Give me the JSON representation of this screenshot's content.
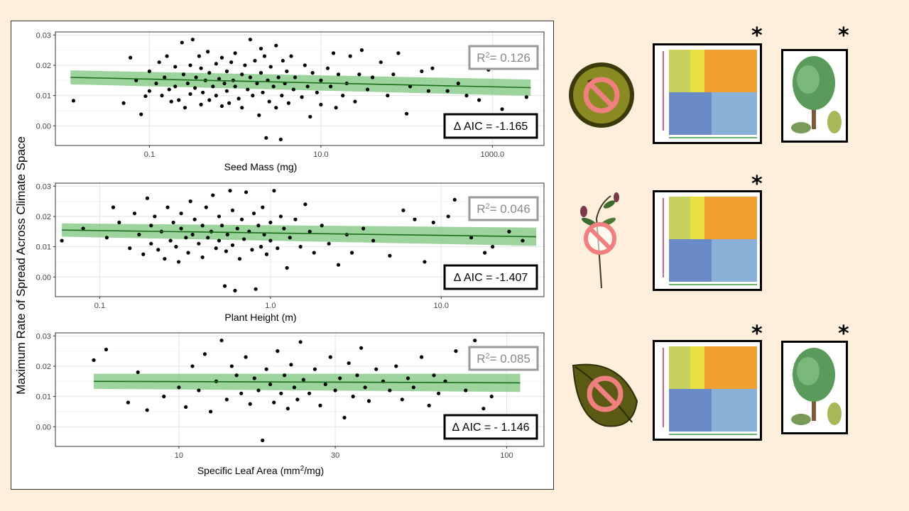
{
  "y_axis_label": "Maximum Rate of Spread Across Climate Space",
  "stat_boxes": [
    {
      "r2_prefix": "R",
      "r2_sup": "2",
      "r2_value": "= 0.126",
      "aic": "Δ AIC = -1.165"
    },
    {
      "r2_prefix": "R",
      "r2_sup": "2",
      "r2_value": "= 0.046",
      "aic": "Δ AIC = -1.407"
    },
    {
      "r2_prefix": "R",
      "r2_sup": "2",
      "r2_value": "= 0.085",
      "aic": "Δ AIC = - 1.146"
    }
  ],
  "asterisk": "*",
  "icons": {
    "row1": [
      "seed-no-icon",
      "climate-map-icon",
      "tree-icon"
    ],
    "row2": [
      "plant-height-no-icon",
      "climate-map-icon"
    ],
    "row3": [
      "leaf-no-icon",
      "climate-map-icon",
      "tree-icon"
    ]
  },
  "colors": {
    "background": "#fdefdc",
    "fit_line": "#1a6e1a",
    "ci_band": "#7cc47c",
    "points": "#000000",
    "no_symbol": "#f08080"
  },
  "chart_data": [
    {
      "type": "scatter",
      "xlabel": "Seed Mass (mg)",
      "xlabel_sup": "",
      "x_scale": "log10",
      "xlim": [
        0.008,
        4000
      ],
      "ylim": [
        -0.0065,
        0.031
      ],
      "x_ticks": [
        0.1,
        10,
        1000
      ],
      "x_tick_labels": [
        "0.1",
        "10.0",
        "1000.0"
      ],
      "y_ticks": [
        0,
        0.01,
        0.02,
        0.03
      ],
      "y_tick_labels": [
        "0.00",
        "0.01",
        "0.02",
        "0.03"
      ],
      "grid": true,
      "fit": {
        "x": [
          0.012,
          2800
        ],
        "y": [
          0.016,
          0.0126
        ],
        "ci_halfwidth": [
          0.0023,
          0.0027
        ]
      },
      "points": [
        [
          0.013,
          0.0083
        ],
        [
          0.05,
          0.0075
        ],
        [
          0.06,
          0.0225
        ],
        [
          0.07,
          0.015
        ],
        [
          0.08,
          0.0038
        ],
        [
          0.09,
          0.0098
        ],
        [
          0.1,
          0.0115
        ],
        [
          0.1,
          0.018
        ],
        [
          0.12,
          0.014
        ],
        [
          0.13,
          0.021
        ],
        [
          0.14,
          0.01
        ],
        [
          0.15,
          0.016
        ],
        [
          0.16,
          0.023
        ],
        [
          0.17,
          0.012
        ],
        [
          0.18,
          0.008
        ],
        [
          0.2,
          0.0195
        ],
        [
          0.2,
          0.013
        ],
        [
          0.22,
          0.0085
        ],
        [
          0.24,
          0.0275
        ],
        [
          0.25,
          0.017
        ],
        [
          0.26,
          0.006
        ],
        [
          0.28,
          0.014
        ],
        [
          0.3,
          0.02
        ],
        [
          0.3,
          0.0105
        ],
        [
          0.32,
          0.0285
        ],
        [
          0.34,
          0.0125
        ],
        [
          0.35,
          0.016
        ],
        [
          0.38,
          0.023
        ],
        [
          0.4,
          0.007
        ],
        [
          0.4,
          0.019
        ],
        [
          0.42,
          0.011
        ],
        [
          0.45,
          0.015
        ],
        [
          0.48,
          0.0245
        ],
        [
          0.5,
          0.0085
        ],
        [
          0.5,
          0.0175
        ],
        [
          0.55,
          0.013
        ],
        [
          0.6,
          0.0205
        ],
        [
          0.6,
          0.01
        ],
        [
          0.65,
          0.0155
        ],
        [
          0.7,
          0.0065
        ],
        [
          0.7,
          0.0225
        ],
        [
          0.75,
          0.014
        ],
        [
          0.8,
          0.018
        ],
        [
          0.8,
          0.0115
        ],
        [
          0.85,
          0.0075
        ],
        [
          0.9,
          0.021
        ],
        [
          0.95,
          0.015
        ],
        [
          1.0,
          0.013
        ],
        [
          1.0,
          0.024
        ],
        [
          1.1,
          0.009
        ],
        [
          1.2,
          0.017
        ],
        [
          1.2,
          0.006
        ],
        [
          1.3,
          0.02
        ],
        [
          1.4,
          0.012
        ],
        [
          1.5,
          0.016
        ],
        [
          1.5,
          0.0285
        ],
        [
          1.6,
          0.01
        ],
        [
          1.7,
          0.0215
        ],
        [
          1.8,
          0.014
        ],
        [
          1.9,
          0.0035
        ],
        [
          2.0,
          0.0175
        ],
        [
          2.0,
          0.0255
        ],
        [
          2.1,
          0.011
        ],
        [
          2.2,
          0.023
        ],
        [
          2.3,
          -0.004
        ],
        [
          2.4,
          0.015
        ],
        [
          2.5,
          0.008
        ],
        [
          2.6,
          0.0195
        ],
        [
          2.8,
          0.013
        ],
        [
          3.0,
          0.0265
        ],
        [
          3.0,
          0.006
        ],
        [
          3.2,
          0.016
        ],
        [
          3.4,
          -0.0045
        ],
        [
          3.5,
          0.01
        ],
        [
          3.6,
          0.0215
        ],
        [
          3.8,
          0.014
        ],
        [
          4.0,
          0.018
        ],
        [
          4.2,
          0.0075
        ],
        [
          4.5,
          0.023
        ],
        [
          4.8,
          0.012
        ],
        [
          5.0,
          0.016
        ],
        [
          6.0,
          0.0095
        ],
        [
          6.5,
          0.02
        ],
        [
          7.0,
          0.013
        ],
        [
          7.5,
          0.003
        ],
        [
          8.0,
          0.0175
        ],
        [
          9.0,
          0.011
        ],
        [
          10,
          0.015
        ],
        [
          10,
          0.007
        ],
        [
          12,
          0.019
        ],
        [
          13,
          0.013
        ],
        [
          14,
          0.024
        ],
        [
          15,
          0.006
        ],
        [
          16,
          0.017
        ],
        [
          18,
          0.01
        ],
        [
          20,
          0.014
        ],
        [
          22,
          0.023
        ],
        [
          25,
          0.008
        ],
        [
          28,
          0.017
        ],
        [
          30,
          0.025
        ],
        [
          35,
          0.012
        ],
        [
          40,
          0.016
        ],
        [
          50,
          0.021
        ],
        [
          60,
          0.01
        ],
        [
          70,
          0.017
        ],
        [
          80,
          0.024
        ],
        [
          100,
          0.004
        ],
        [
          110,
          0.013
        ],
        [
          150,
          0.018
        ],
        [
          180,
          0.0115
        ],
        [
          200,
          0.019
        ],
        [
          300,
          0.0115
        ],
        [
          400,
          0.014
        ],
        [
          500,
          0.01
        ],
        [
          700,
          0.0085
        ],
        [
          900,
          0.0185
        ],
        [
          1300,
          0.0055
        ],
        [
          2500,
          0.0095
        ]
      ]
    },
    {
      "type": "scatter",
      "xlabel": "Plant Height (m)",
      "xlabel_sup": "",
      "x_scale": "log10",
      "xlim": [
        0.055,
        40
      ],
      "ylim": [
        -0.0065,
        0.031
      ],
      "x_ticks": [
        0.1,
        1,
        10
      ],
      "x_tick_labels": [
        "0.1",
        "1.0",
        "10.0"
      ],
      "y_ticks": [
        0,
        0.01,
        0.02,
        0.03
      ],
      "y_tick_labels": [
        "0.00",
        "0.01",
        "0.02",
        "0.03"
      ],
      "grid": true,
      "fit": {
        "x": [
          0.06,
          36
        ],
        "y": [
          0.0155,
          0.0133
        ],
        "ci_halfwidth": [
          0.0022,
          0.003
        ]
      },
      "points": [
        [
          0.06,
          0.012
        ],
        [
          0.08,
          0.016
        ],
        [
          0.11,
          0.013
        ],
        [
          0.12,
          0.023
        ],
        [
          0.13,
          0.018
        ],
        [
          0.15,
          0.0095
        ],
        [
          0.16,
          0.021
        ],
        [
          0.17,
          0.014
        ],
        [
          0.18,
          0.0075
        ],
        [
          0.19,
          0.026
        ],
        [
          0.2,
          0.017
        ],
        [
          0.2,
          0.011
        ],
        [
          0.21,
          0.02
        ],
        [
          0.22,
          0.009
        ],
        [
          0.23,
          0.015
        ],
        [
          0.24,
          0.006
        ],
        [
          0.25,
          0.023
        ],
        [
          0.26,
          0.012
        ],
        [
          0.27,
          0.018
        ],
        [
          0.28,
          0.01
        ],
        [
          0.29,
          0.005
        ],
        [
          0.3,
          0.016
        ],
        [
          0.3,
          0.021
        ],
        [
          0.32,
          0.013
        ],
        [
          0.33,
          0.008
        ],
        [
          0.34,
          0.025
        ],
        [
          0.35,
          0.014
        ],
        [
          0.36,
          0.019
        ],
        [
          0.38,
          0.011
        ],
        [
          0.4,
          0.017
        ],
        [
          0.4,
          0.0065
        ],
        [
          0.42,
          0.023
        ],
        [
          0.43,
          0.013
        ],
        [
          0.45,
          0.015
        ],
        [
          0.46,
          0.027
        ],
        [
          0.48,
          0.0095
        ],
        [
          0.5,
          0.02
        ],
        [
          0.5,
          0.012
        ],
        [
          0.52,
          0.017
        ],
        [
          0.54,
          -0.003
        ],
        [
          0.55,
          0.0085
        ],
        [
          0.56,
          0.014
        ],
        [
          0.58,
          0.0285
        ],
        [
          0.6,
          0.022
        ],
        [
          0.6,
          0.0105
        ],
        [
          0.62,
          -0.0045
        ],
        [
          0.64,
          0.016
        ],
        [
          0.66,
          0.006
        ],
        [
          0.68,
          0.019
        ],
        [
          0.7,
          0.0125
        ],
        [
          0.72,
          0.028
        ],
        [
          0.75,
          0.015
        ],
        [
          0.78,
          0.009
        ],
        [
          0.8,
          0.021
        ],
        [
          0.82,
          -0.004
        ],
        [
          0.85,
          0.017
        ],
        [
          0.88,
          0.01
        ],
        [
          0.9,
          0.023
        ],
        [
          0.92,
          0.014
        ],
        [
          0.95,
          0.0075
        ],
        [
          1.0,
          0.018
        ],
        [
          1.0,
          0.012
        ],
        [
          1.05,
          0.0285
        ],
        [
          1.1,
          0.0095
        ],
        [
          1.15,
          0.02
        ],
        [
          1.2,
          0.016
        ],
        [
          1.25,
          0.003
        ],
        [
          1.3,
          0.013
        ],
        [
          1.4,
          0.019
        ],
        [
          1.5,
          0.01
        ],
        [
          1.6,
          0.024
        ],
        [
          1.7,
          0.015
        ],
        [
          1.8,
          0.008
        ],
        [
          2.0,
          0.017
        ],
        [
          2.2,
          0.011
        ],
        [
          2.5,
          0.004
        ],
        [
          2.8,
          0.014
        ],
        [
          3.0,
          0.008
        ],
        [
          3.5,
          0.016
        ],
        [
          4.0,
          0.012
        ],
        [
          5.0,
          0.007
        ],
        [
          6.0,
          0.022
        ],
        [
          7.0,
          0.019
        ],
        [
          8.0,
          0.005
        ],
        [
          9.0,
          0.018
        ],
        [
          11,
          0.02
        ],
        [
          12,
          0.0255
        ],
        [
          15,
          0.013
        ],
        [
          18,
          0.008
        ],
        [
          20,
          0.01
        ],
        [
          25,
          0.015
        ],
        [
          30,
          0.012
        ]
      ]
    },
    {
      "type": "scatter",
      "xlabel": "Specific Leaf Area (mm",
      "xlabel_sup": "2",
      "xlabel_suffix": "/mg)",
      "x_scale": "log10",
      "xlim": [
        4.2,
        130
      ],
      "ylim": [
        -0.0065,
        0.031
      ],
      "x_ticks": [
        10,
        30,
        100
      ],
      "x_tick_labels": [
        "10",
        "30",
        "100"
      ],
      "y_ticks": [
        0,
        0.01,
        0.02,
        0.03
      ],
      "y_tick_labels": [
        "0.00",
        "0.01",
        "0.02",
        "0.03"
      ],
      "grid": true,
      "fit": {
        "x": [
          5.5,
          110
        ],
        "y": [
          0.015,
          0.0145
        ],
        "ci_halfwidth": [
          0.0025,
          0.003
        ]
      },
      "points": [
        [
          5.5,
          0.022
        ],
        [
          6.0,
          0.0255
        ],
        [
          7.0,
          0.008
        ],
        [
          7.5,
          0.018
        ],
        [
          8.0,
          0.0055
        ],
        [
          9.0,
          0.01
        ],
        [
          10,
          0.013
        ],
        [
          10.5,
          0.0065
        ],
        [
          11,
          0.02
        ],
        [
          11.5,
          0.012
        ],
        [
          12,
          0.024
        ],
        [
          12.5,
          0.005
        ],
        [
          13,
          0.015
        ],
        [
          13.5,
          0.0285
        ],
        [
          14,
          0.009
        ],
        [
          14.5,
          0.02
        ],
        [
          15,
          0.017
        ],
        [
          15.5,
          0.011
        ],
        [
          16,
          0.023
        ],
        [
          16.5,
          0.0075
        ],
        [
          17,
          0.016
        ],
        [
          17.5,
          0.012
        ],
        [
          18,
          -0.0045
        ],
        [
          18.5,
          0.019
        ],
        [
          19,
          0.014
        ],
        [
          19.5,
          0.008
        ],
        [
          20,
          0.025
        ],
        [
          20.5,
          0.011
        ],
        [
          21,
          0.017
        ],
        [
          21.5,
          0.006
        ],
        [
          22,
          0.0205
        ],
        [
          22.5,
          0.013
        ],
        [
          23,
          0.009
        ],
        [
          23.5,
          0.028
        ],
        [
          24,
          0.0155
        ],
        [
          25,
          0.011
        ],
        [
          26,
          0.019
        ],
        [
          27,
          0.007
        ],
        [
          28,
          0.014
        ],
        [
          29,
          0.023
        ],
        [
          30,
          0.012
        ],
        [
          31,
          0.016
        ],
        [
          32,
          0.003
        ],
        [
          33,
          0.021
        ],
        [
          34,
          0.01
        ],
        [
          35,
          0.017
        ],
        [
          36,
          0.026
        ],
        [
          37,
          0.013
        ],
        [
          38,
          0.0085
        ],
        [
          40,
          0.019
        ],
        [
          42,
          0.015
        ],
        [
          44,
          0.012
        ],
        [
          46,
          0.02
        ],
        [
          48,
          0.009
        ],
        [
          50,
          0.016
        ],
        [
          52,
          0.013
        ],
        [
          55,
          0.023
        ],
        [
          58,
          0.007
        ],
        [
          60,
          0.017
        ],
        [
          62,
          0.011
        ],
        [
          65,
          0.015
        ],
        [
          70,
          0.025
        ],
        [
          75,
          0.012
        ],
        [
          80,
          0.0285
        ],
        [
          85,
          0.006
        ],
        [
          90,
          0.01
        ]
      ]
    }
  ]
}
